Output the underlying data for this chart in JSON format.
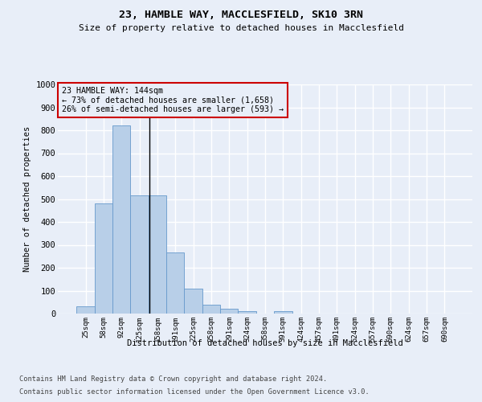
{
  "title_line1": "23, HAMBLE WAY, MACCLESFIELD, SK10 3RN",
  "title_line2": "Size of property relative to detached houses in Macclesfield",
  "xlabel": "Distribution of detached houses by size in Macclesfield",
  "ylabel": "Number of detached properties",
  "bar_labels": [
    "25sqm",
    "58sqm",
    "92sqm",
    "125sqm",
    "158sqm",
    "191sqm",
    "225sqm",
    "258sqm",
    "291sqm",
    "324sqm",
    "358sqm",
    "391sqm",
    "424sqm",
    "457sqm",
    "491sqm",
    "524sqm",
    "557sqm",
    "590sqm",
    "624sqm",
    "657sqm",
    "690sqm"
  ],
  "bar_values": [
    33,
    480,
    820,
    515,
    515,
    265,
    110,
    38,
    20,
    12,
    0,
    10,
    0,
    0,
    0,
    0,
    0,
    0,
    0,
    0,
    0
  ],
  "bar_color": "#b8cfe8",
  "bar_edge_color": "#6699cc",
  "background_color": "#e8eef8",
  "grid_color": "#ffffff",
  "ylim": [
    0,
    1000
  ],
  "yticks": [
    0,
    100,
    200,
    300,
    400,
    500,
    600,
    700,
    800,
    900,
    1000
  ],
  "property_size": 144,
  "property_label": "23 HAMBLE WAY: 144sqm",
  "annotation_line1": "← 73% of detached houses are smaller (1,658)",
  "annotation_line2": "26% of semi-detached houses are larger (593) →",
  "vline_color": "#000000",
  "annotation_box_edgecolor": "#cc0000",
  "footer_line1": "Contains HM Land Registry data © Crown copyright and database right 2024.",
  "footer_line2": "Contains public sector information licensed under the Open Government Licence v3.0.",
  "bin_size": 33
}
